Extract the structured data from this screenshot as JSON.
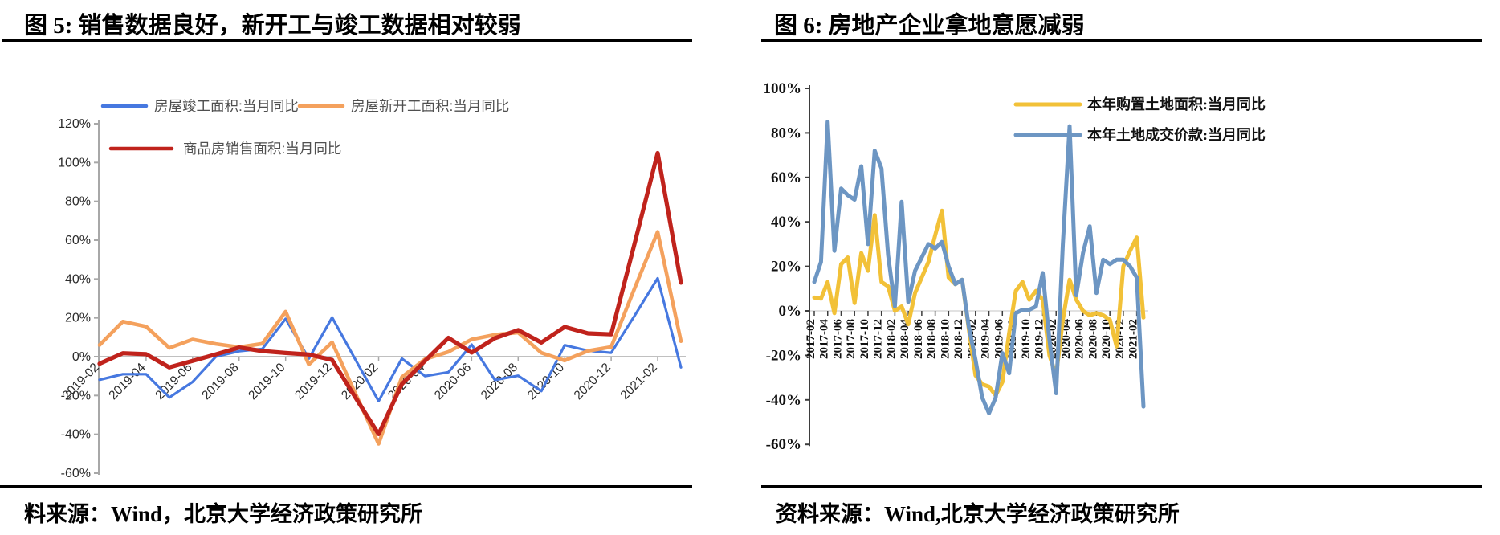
{
  "panels": [
    {
      "source": "料来源：Wind，北京大学经济政策研究所"
    },
    {
      "source": "资料来源：Wind,北京大学经济政策研究所"
    }
  ],
  "chart_data": [
    {
      "type": "line",
      "title": "图 5: 销售数据良好，新开工与竣工数据相对较弱",
      "ylim": [
        -60,
        120
      ],
      "ytick_step": 20,
      "y_ticks": [
        120,
        100,
        80,
        60,
        40,
        20,
        0,
        -20,
        -40,
        -60
      ],
      "grid": "zero line only",
      "legend_position": "top-left inside plot",
      "x": [
        "2019-02",
        "2019-03",
        "2019-04",
        "2019-05",
        "2019-06",
        "2019-07",
        "2019-08",
        "2019-09",
        "2019-10",
        "2019-11",
        "2019-12",
        "2020-01",
        "2020-02",
        "2020-03",
        "2020-04",
        "2020-05",
        "2020-06",
        "2020-07",
        "2020-08",
        "2020-09",
        "2020-10",
        "2020-11",
        "2020-12",
        "2021-01",
        "2021-02",
        "2021-03"
      ],
      "x_tick_every": 2,
      "x_tick_labels": [
        "2019-02",
        "2019-04",
        "2019-06",
        "2019-08",
        "2019-10",
        "2019-12",
        "2020-02",
        "2020-04",
        "2020-06",
        "2020-08",
        "2020-10",
        "2020-12",
        "2021-02"
      ],
      "series": [
        {
          "name": "房屋竣工面积:当月同比",
          "color": "#4678e0",
          "values": [
            -11.9,
            -9,
            -9,
            -21,
            -13,
            0,
            2.8,
            4,
            19.5,
            -1,
            20.2,
            -1.5,
            -22.9,
            -1,
            -10,
            -8,
            6.2,
            -12,
            -9.8,
            -17.7,
            5.9,
            3.1,
            2,
            21,
            40.4,
            -5.5
          ]
        },
        {
          "name": "房屋新开工面积:当月同比",
          "color": "#f4a15d",
          "values": [
            6,
            18.1,
            15.5,
            4.5,
            8.9,
            6.6,
            4.9,
            6.7,
            23.2,
            -4,
            7.4,
            -19,
            -44.9,
            -10.5,
            -1.3,
            2.5,
            8.9,
            11.3,
            12.4,
            2,
            -2,
            3,
            5,
            35,
            64.3,
            8
          ]
        },
        {
          "name": "商品房销售面积:当月同比",
          "color": "#c0231c",
          "values": [
            -3.6,
            1.8,
            1.3,
            -5.5,
            -2.2,
            1.2,
            4.7,
            2.9,
            1.9,
            1.1,
            -1.7,
            -21,
            -39.9,
            -14.1,
            -2.1,
            9.7,
            2.1,
            9.5,
            13.7,
            7.3,
            15.3,
            12,
            11.5,
            58,
            104.9,
            38.1
          ]
        }
      ]
    },
    {
      "type": "line",
      "title": "图 6: 房地产企业拿地意愿减弱",
      "ylim": [
        -60,
        100
      ],
      "ytick_step": 20,
      "y_ticks": [
        100,
        80,
        60,
        40,
        20,
        0,
        -20,
        -40,
        -60
      ],
      "grid": "zero line only",
      "legend_position": "top-center inside plot",
      "x": [
        "2017-02",
        "2017-03",
        "2017-04",
        "2017-05",
        "2017-06",
        "2017-07",
        "2017-08",
        "2017-09",
        "2017-10",
        "2017-11",
        "2017-12",
        "2018-01",
        "2018-02",
        "2018-03",
        "2018-04",
        "2018-05",
        "2018-06",
        "2018-07",
        "2018-08",
        "2018-09",
        "2018-10",
        "2018-11",
        "2018-12",
        "2019-01",
        "2019-02",
        "2019-03",
        "2019-04",
        "2019-05",
        "2019-06",
        "2019-07",
        "2019-08",
        "2019-09",
        "2019-10",
        "2019-11",
        "2019-12",
        "2020-01",
        "2020-02",
        "2020-03",
        "2020-04",
        "2020-05",
        "2020-06",
        "2020-07",
        "2020-08",
        "2020-09",
        "2020-10",
        "2020-11",
        "2020-12",
        "2021-01",
        "2021-02",
        "2021-03"
      ],
      "x_tick_every": 2,
      "x_tick_labels": [
        "2017-02",
        "2017-04",
        "2017-06",
        "2017-08",
        "2017-10",
        "2017-12",
        "2018-02",
        "2018-04",
        "2018-06",
        "2018-08",
        "2018-10",
        "2018-12",
        "2019-02",
        "2019-04",
        "2019-06",
        "2019-08",
        "2019-10",
        "2019-12",
        "2020-02",
        "2020-04",
        "2020-06",
        "2020-08",
        "2020-10",
        "2020-12",
        "2021-02"
      ],
      "series": [
        {
          "name": "本年购置土地面积:当月同比",
          "color": "#f2c138",
          "values": [
            6,
            5.5,
            13,
            -1,
            21,
            24,
            3.5,
            26,
            18,
            43,
            13,
            11,
            0,
            2,
            -6,
            8,
            15,
            22,
            34,
            45,
            15,
            12,
            14,
            -8,
            -29,
            -33,
            -34,
            -38,
            -32,
            -10,
            9,
            13,
            5,
            9,
            5,
            -20,
            -29,
            -4,
            14,
            5,
            0,
            -2,
            -1,
            -2,
            -4,
            -16,
            20,
            27,
            33,
            -3
          ]
        },
        {
          "name": "本年土地成交价款:当月同比",
          "color": "#6d96c3",
          "values": [
            13,
            22,
            85,
            27,
            55,
            52,
            50,
            65,
            30,
            72,
            64,
            25,
            2,
            49,
            4,
            18,
            24,
            30,
            28,
            31,
            20,
            12,
            14,
            -7,
            -22,
            -39,
            -46,
            -39,
            -19,
            -28,
            -1,
            0.5,
            0.5,
            2,
            17,
            -13,
            -37,
            30,
            83,
            7,
            26,
            38,
            8,
            23,
            21,
            23,
            23,
            20,
            15,
            -43
          ]
        }
      ]
    }
  ]
}
